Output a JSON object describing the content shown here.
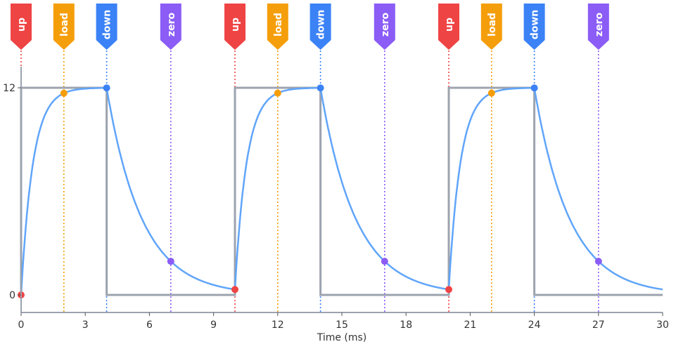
{
  "chart_data": {
    "type": "line",
    "xlabel": "Time (ms)",
    "ylabel": "",
    "xlim": [
      0,
      30
    ],
    "ylim": [
      0,
      12
    ],
    "xticks": [
      0,
      3,
      6,
      9,
      12,
      15,
      18,
      21,
      24,
      27,
      30
    ],
    "yticks": [
      0,
      12
    ],
    "grid": false,
    "series": [
      {
        "kind": "square-wave",
        "color": "#9ca3af",
        "steps": [
          [
            0,
            12
          ],
          [
            4,
            0
          ],
          [
            10,
            12
          ],
          [
            14,
            0
          ],
          [
            20,
            12
          ],
          [
            24,
            0
          ],
          [
            30,
            0
          ]
        ]
      },
      {
        "kind": "rc-response",
        "color": "#60a5fa",
        "high": 12,
        "low": 0,
        "tau_rise_ms": 0.55,
        "tau_fall_ms": 1.65
      }
    ],
    "events": [
      {
        "label": "up",
        "t": 0,
        "color": "#ef4444"
      },
      {
        "label": "load",
        "t": 2,
        "color": "#f59e0b"
      },
      {
        "label": "down",
        "t": 4,
        "color": "#3b82f6"
      },
      {
        "label": "zero",
        "t": 7,
        "color": "#8b5cf6"
      },
      {
        "label": "up",
        "t": 10,
        "color": "#ef4444"
      },
      {
        "label": "load",
        "t": 12,
        "color": "#f59e0b"
      },
      {
        "label": "down",
        "t": 14,
        "color": "#3b82f6"
      },
      {
        "label": "zero",
        "t": 17,
        "color": "#8b5cf6"
      },
      {
        "label": "up",
        "t": 20,
        "color": "#ef4444"
      },
      {
        "label": "load",
        "t": 22,
        "color": "#f59e0b"
      },
      {
        "label": "down",
        "t": 24,
        "color": "#3b82f6"
      },
      {
        "label": "zero",
        "t": 27,
        "color": "#8b5cf6"
      }
    ]
  }
}
